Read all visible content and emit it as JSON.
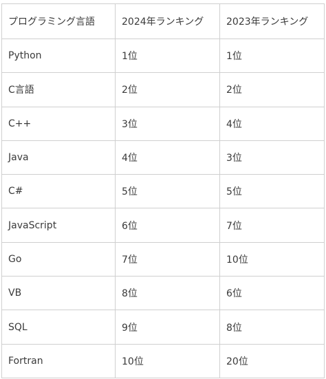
{
  "table": {
    "headers": [
      "プログラミング言語",
      "2024年ランキング",
      "2023年ランキング"
    ],
    "rows": [
      {
        "language": "Python",
        "rank_2024": "1位",
        "rank_2023": "1位"
      },
      {
        "language": "C言語",
        "rank_2024": "2位",
        "rank_2023": "2位"
      },
      {
        "language": "C++",
        "rank_2024": "3位",
        "rank_2023": "4位"
      },
      {
        "language": "Java",
        "rank_2024": "4位",
        "rank_2023": "3位"
      },
      {
        "language": "C#",
        "rank_2024": "5位",
        "rank_2023": "5位"
      },
      {
        "language": "JavaScript",
        "rank_2024": "6位",
        "rank_2023": "7位"
      },
      {
        "language": "Go",
        "rank_2024": "7位",
        "rank_2023": "10位"
      },
      {
        "language": "VB",
        "rank_2024": "8位",
        "rank_2023": "6位"
      },
      {
        "language": "SQL",
        "rank_2024": "9位",
        "rank_2023": "8位"
      },
      {
        "language": "Fortran",
        "rank_2024": "10位",
        "rank_2023": "20位"
      }
    ]
  }
}
